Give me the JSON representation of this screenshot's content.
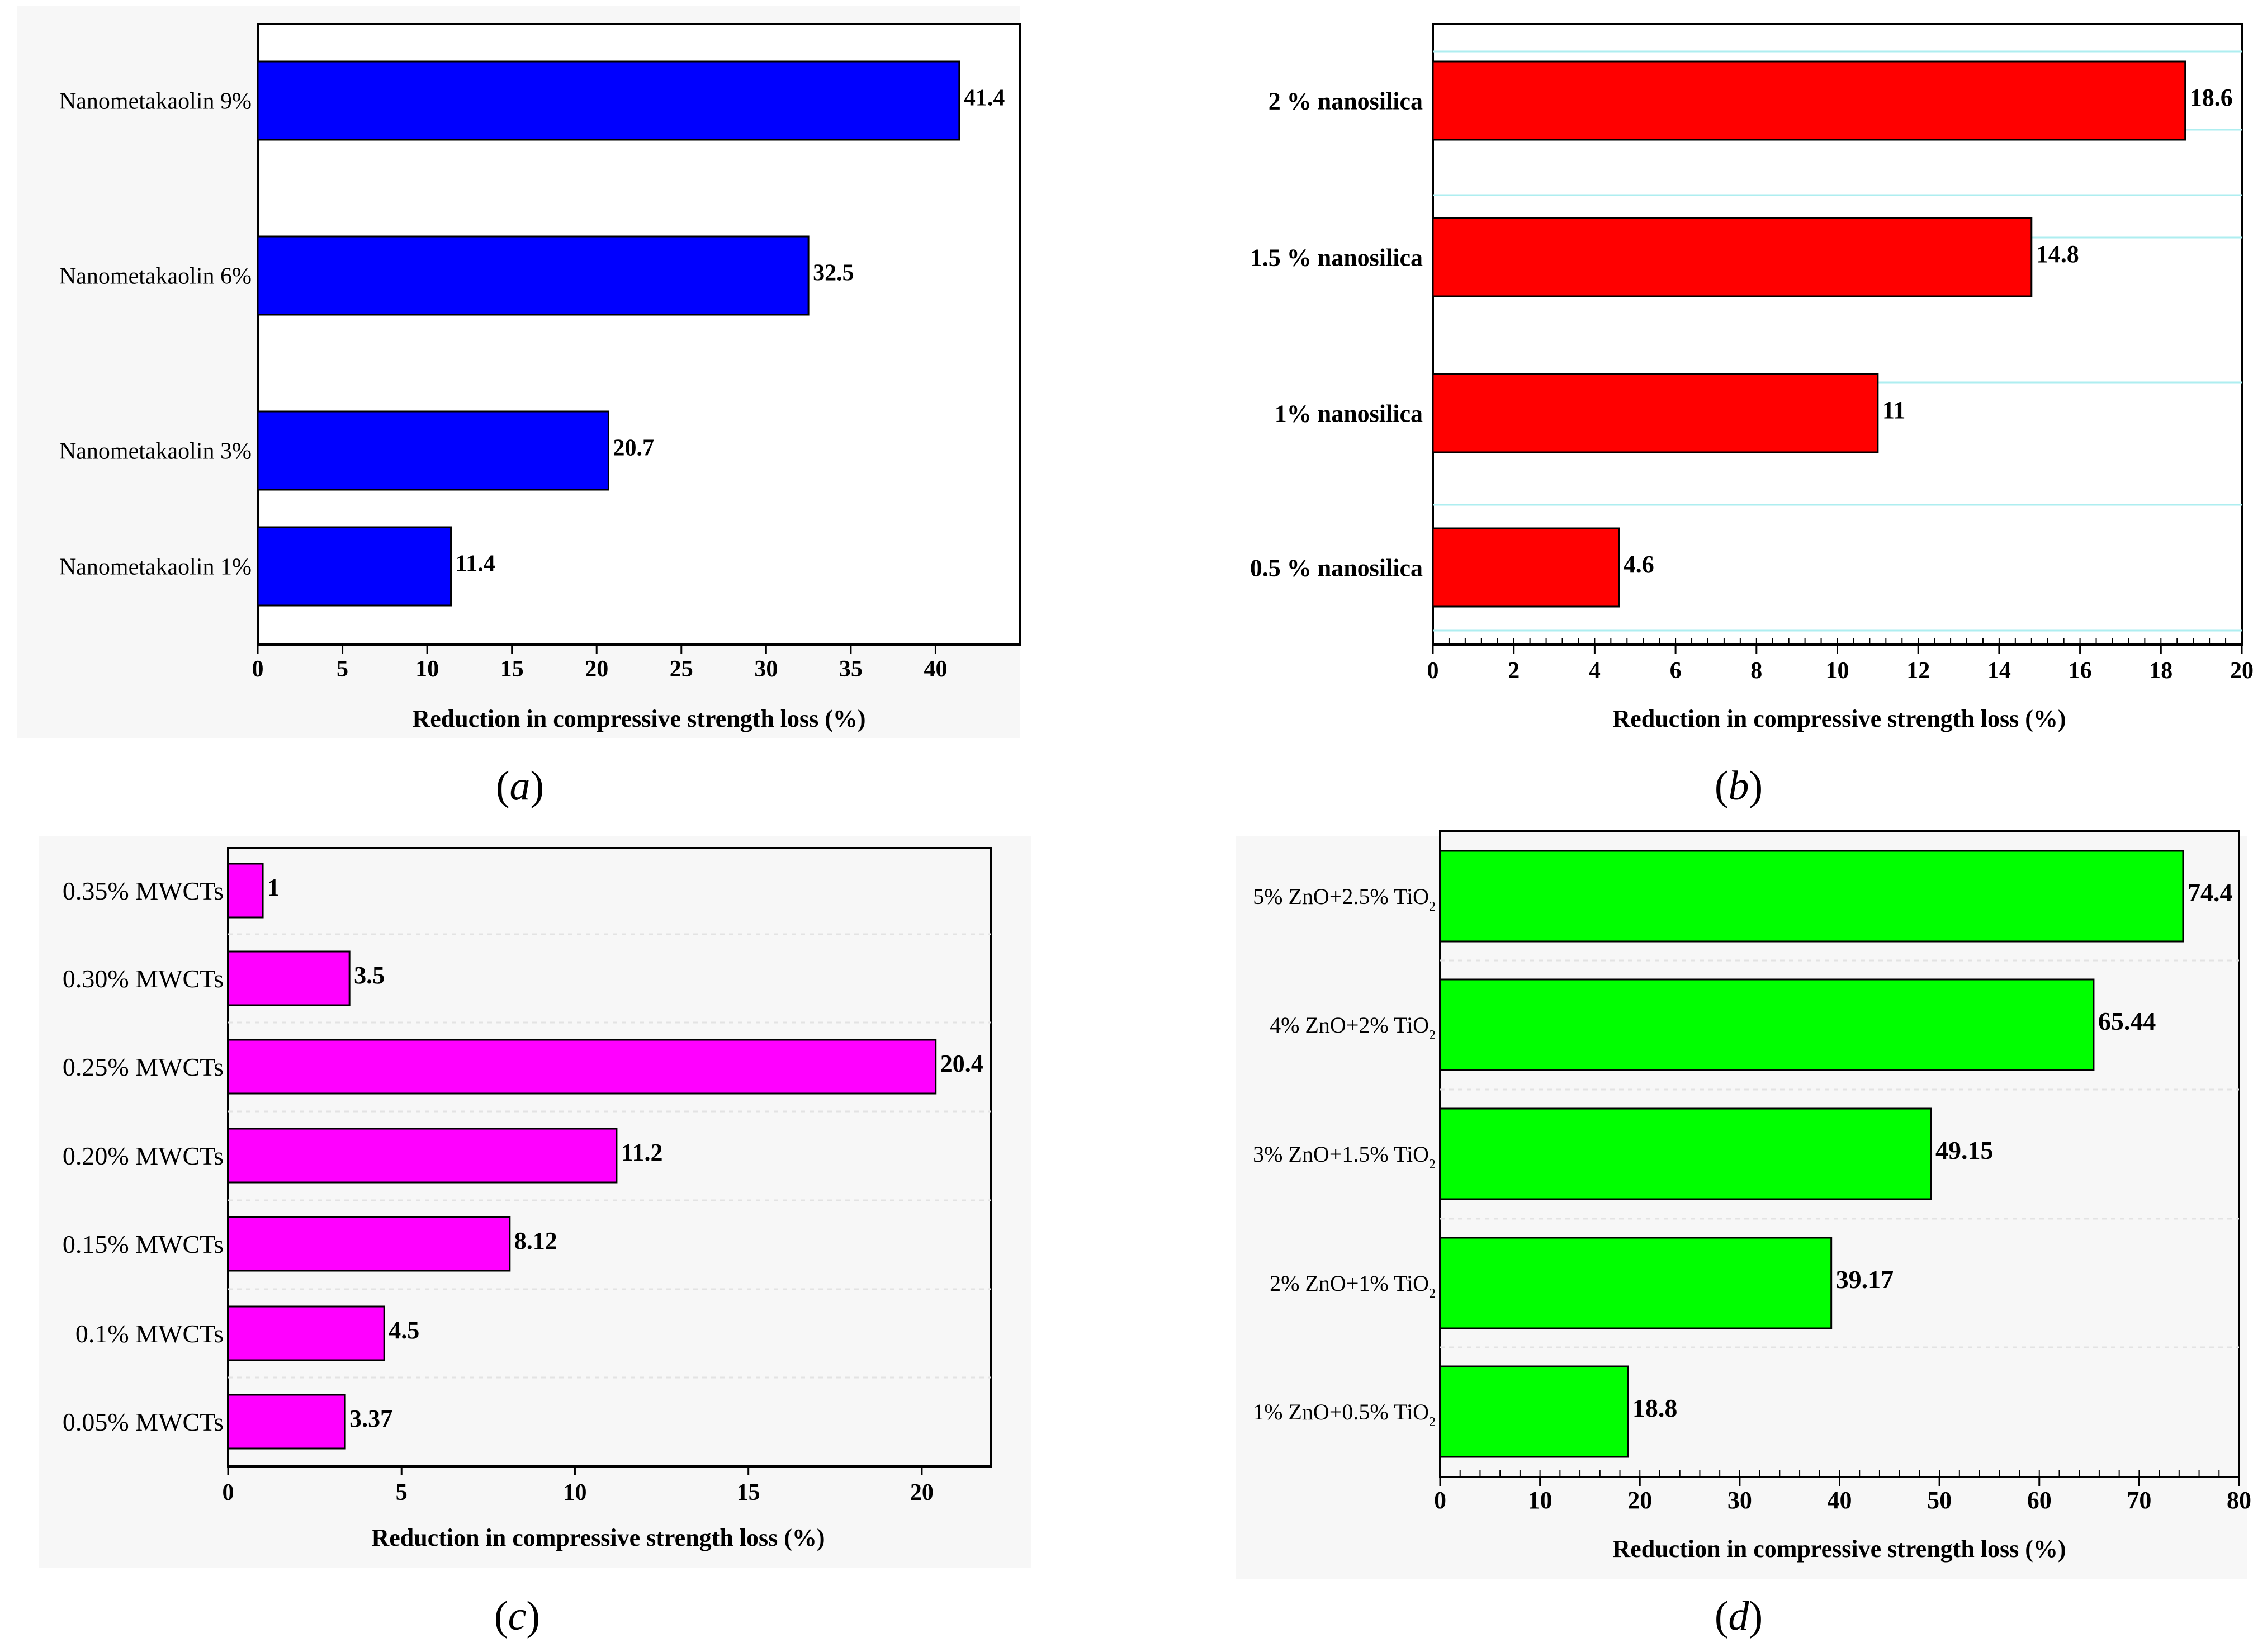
{
  "colors": {
    "a": "#0000ff",
    "b": "#ff0000",
    "c": "#ff00ff",
    "d": "#00ff00",
    "gridB": "#aeeef0",
    "gridC": "#e3e3e3",
    "gridD": "#e3e3e3"
  },
  "chart_data": [
    {
      "id": "a",
      "type": "bar",
      "orientation": "horizontal",
      "caption_letter": "a",
      "xlabel": "Reduction in compressive strength loss (%)",
      "xlim": [
        0,
        45
      ],
      "xticks": [
        0,
        5,
        10,
        15,
        20,
        25,
        30,
        35,
        40
      ],
      "categories": [
        "Nanometakaolin 1%",
        "Nanometakaolin 3%",
        "Nanometakaolin 6%",
        "Nanometakaolin 9%"
      ],
      "values": [
        11.4,
        20.7,
        32.5,
        41.4
      ],
      "data_labels": [
        "11.4",
        "20.7",
        "32.5",
        "41.4"
      ]
    },
    {
      "id": "b",
      "type": "bar",
      "orientation": "horizontal",
      "caption_letter": "b",
      "xlabel": "Reduction in compressive strength loss (%)",
      "xlim": [
        0,
        20
      ],
      "xticks": [
        0,
        2,
        4,
        6,
        8,
        10,
        12,
        14,
        16,
        18,
        20
      ],
      "categories": [
        "0.5 % nanosilica",
        "1% nanosilica",
        "1.5 % nanosilica",
        "2 % nanosilica"
      ],
      "values": [
        4.6,
        11,
        14.8,
        18.6
      ],
      "data_labels": [
        "4.6",
        "11",
        "14.8",
        "18.6"
      ]
    },
    {
      "id": "c",
      "type": "bar",
      "orientation": "horizontal",
      "caption_letter": "c",
      "xlabel": "Reduction in compressive strength loss (%)",
      "xlim": [
        0,
        22
      ],
      "xticks": [
        0,
        5,
        10,
        15,
        20
      ],
      "categories": [
        "0.05% MWCTs",
        "0.1% MWCTs",
        "0.15% MWCTs",
        "0.20% MWCTs",
        "0.25% MWCTs",
        "0.30% MWCTs",
        "0.35% MWCTs"
      ],
      "values": [
        3.37,
        4.5,
        8.12,
        11.2,
        20.4,
        3.5,
        1
      ],
      "data_labels": [
        "3.37",
        "4.5",
        "8.12",
        "11.2",
        "20.4",
        "3.5",
        "1"
      ]
    },
    {
      "id": "d",
      "type": "bar",
      "orientation": "horizontal",
      "caption_letter": "d",
      "xlabel": "Reduction in compressive strength loss (%)",
      "xlim": [
        0,
        80
      ],
      "xticks": [
        0,
        10,
        20,
        30,
        40,
        50,
        60,
        70,
        80
      ],
      "categories": [
        "1% ZnO+0.5% TiO2",
        "2% ZnO+1% TiO2",
        "3% ZnO+1.5% TiO2",
        "4% ZnO+2% TiO2",
        "5% ZnO+2.5% TiO2"
      ],
      "values": [
        18.8,
        39.17,
        49.15,
        65.44,
        74.4
      ],
      "data_labels": [
        "18.8",
        "39.17",
        "49.15",
        "65.44",
        "74.4"
      ]
    }
  ]
}
